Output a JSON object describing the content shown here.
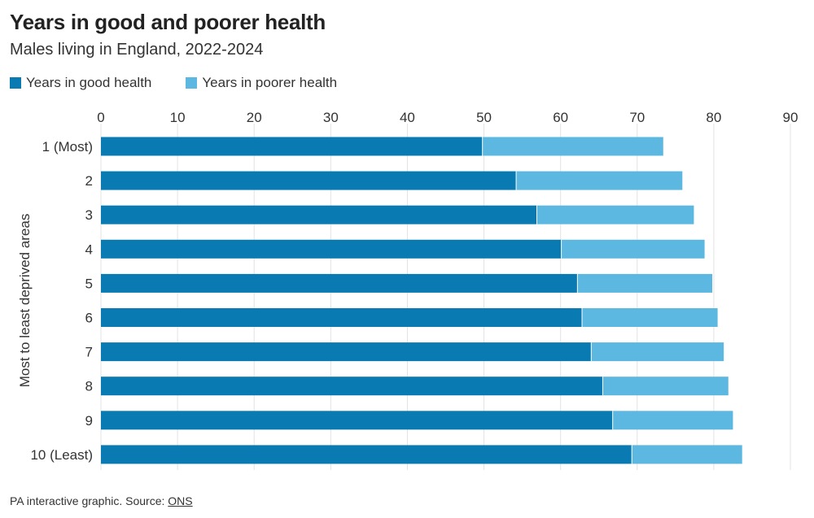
{
  "header": {
    "title": "Years in good and poorer health",
    "subtitle": "Males living in England, 2022-2024"
  },
  "legend": {
    "good_label": "Years in good health",
    "poor_label": "Years in poorer health"
  },
  "footer": {
    "text": "PA interactive graphic. Source: ",
    "source_link": "ONS"
  },
  "colors": {
    "good": "#0a7ab3",
    "poor": "#5cb8e0",
    "grid": "#e3e3e3"
  },
  "chart_data": {
    "type": "bar",
    "orientation": "horizontal",
    "stacked": true,
    "ylabel": "Most to least deprived areas",
    "xlim": [
      0,
      90
    ],
    "xticks": [
      0,
      10,
      20,
      30,
      40,
      50,
      60,
      70,
      80,
      90
    ],
    "legend_position": "top-left",
    "grid": true,
    "categories": [
      "1 (Most)",
      "2",
      "3",
      "4",
      "5",
      "6",
      "7",
      "8",
      "9",
      "10 (Least)"
    ],
    "series": [
      {
        "name": "Years in good health",
        "values": [
          49.8,
          54.2,
          56.9,
          60.1,
          62.2,
          62.8,
          64.0,
          65.5,
          66.8,
          69.3
        ]
      },
      {
        "name": "Years in poorer health",
        "values": [
          23.6,
          21.7,
          20.5,
          18.7,
          17.6,
          17.7,
          17.3,
          16.4,
          15.7,
          14.4
        ]
      }
    ]
  }
}
